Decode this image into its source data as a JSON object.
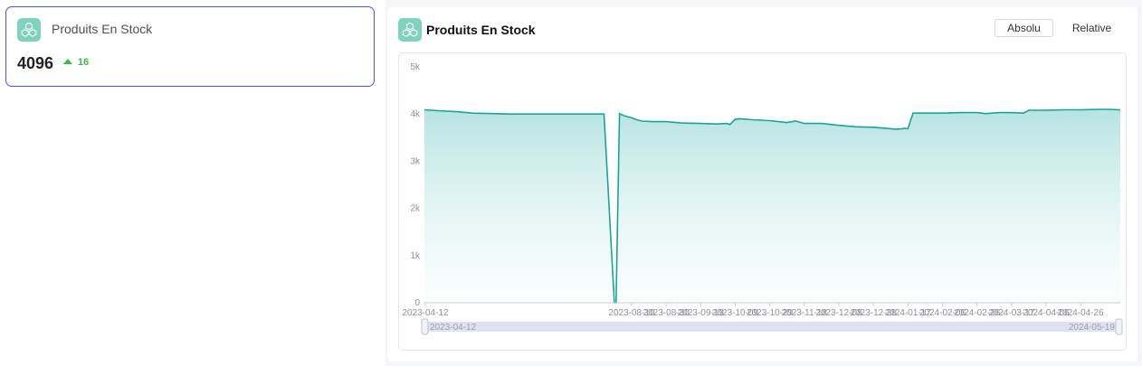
{
  "kpi": {
    "title": "Produits En Stock",
    "value": "4096",
    "delta": "16",
    "icon": "boxes-icon"
  },
  "panel": {
    "title": "Produits En Stock",
    "icon": "boxes-icon",
    "buttons": {
      "absolu": "Absolu",
      "relative": "Relative"
    }
  },
  "colors": {
    "accent": "#4658d6",
    "line": "#1aa39a",
    "positive": "#3fb84a",
    "icon_bg": "#7fd3bd"
  },
  "chart_data": {
    "type": "area",
    "x_ticks": [
      "2023-04-12",
      "2023-08-10",
      "2023-08-30",
      "2023-09-19",
      "2023-10-09",
      "2023-10-29",
      "2023-11-18",
      "2023-12-08",
      "2023-12-28",
      "2024-01-17",
      "2024-02-06",
      "2024-02-26",
      "2024-03-17",
      "2024-04-06",
      "2024-04-26"
    ],
    "y_ticks": [
      "0",
      "1k",
      "2k",
      "3k",
      "4k",
      "5k"
    ],
    "ylim": [
      0,
      5000
    ],
    "grid": false,
    "zoom_range": [
      "2023-04-12",
      "2024-05-19"
    ],
    "series": [
      {
        "x": [
          "2023-04-12",
          "2023-04-20",
          "2023-05-01",
          "2023-05-10",
          "2023-06-01",
          "2023-06-30",
          "2023-07-25",
          "2023-07-31",
          "2023-08-01",
          "2023-08-03",
          "2023-08-06",
          "2023-08-10",
          "2023-08-13",
          "2023-08-16",
          "2023-08-22",
          "2023-08-30",
          "2023-09-08",
          "2023-09-19",
          "2023-09-28",
          "2023-10-04",
          "2023-10-06",
          "2023-10-09",
          "2023-10-12",
          "2023-10-19",
          "2023-10-29",
          "2023-11-08",
          "2023-11-13",
          "2023-11-18",
          "2023-11-28",
          "2023-12-08",
          "2023-12-18",
          "2023-12-28",
          "2024-01-04",
          "2024-01-10",
          "2024-01-14",
          "2024-01-15",
          "2024-01-17",
          "2024-01-20",
          "2024-01-27",
          "2024-02-06",
          "2024-02-16",
          "2024-02-26",
          "2024-03-02",
          "2024-03-06",
          "2024-03-10",
          "2024-03-17",
          "2024-03-24",
          "2024-03-27",
          "2024-04-06",
          "2024-04-16",
          "2024-04-26",
          "2024-05-06",
          "2024-05-12",
          "2024-05-19"
        ],
        "y": [
          4090,
          4070,
          4050,
          4020,
          4000,
          4000,
          4000,
          0,
          0,
          4010,
          3960,
          3920,
          3880,
          3850,
          3840,
          3840,
          3810,
          3800,
          3790,
          3800,
          3780,
          3890,
          3900,
          3880,
          3860,
          3820,
          3850,
          3800,
          3800,
          3760,
          3730,
          3720,
          3700,
          3680,
          3690,
          3700,
          3690,
          4020,
          4020,
          4020,
          4030,
          4030,
          4010,
          4020,
          4030,
          4030,
          4020,
          4080,
          4080,
          4090,
          4090,
          4100,
          4100,
          4090
        ]
      }
    ]
  }
}
